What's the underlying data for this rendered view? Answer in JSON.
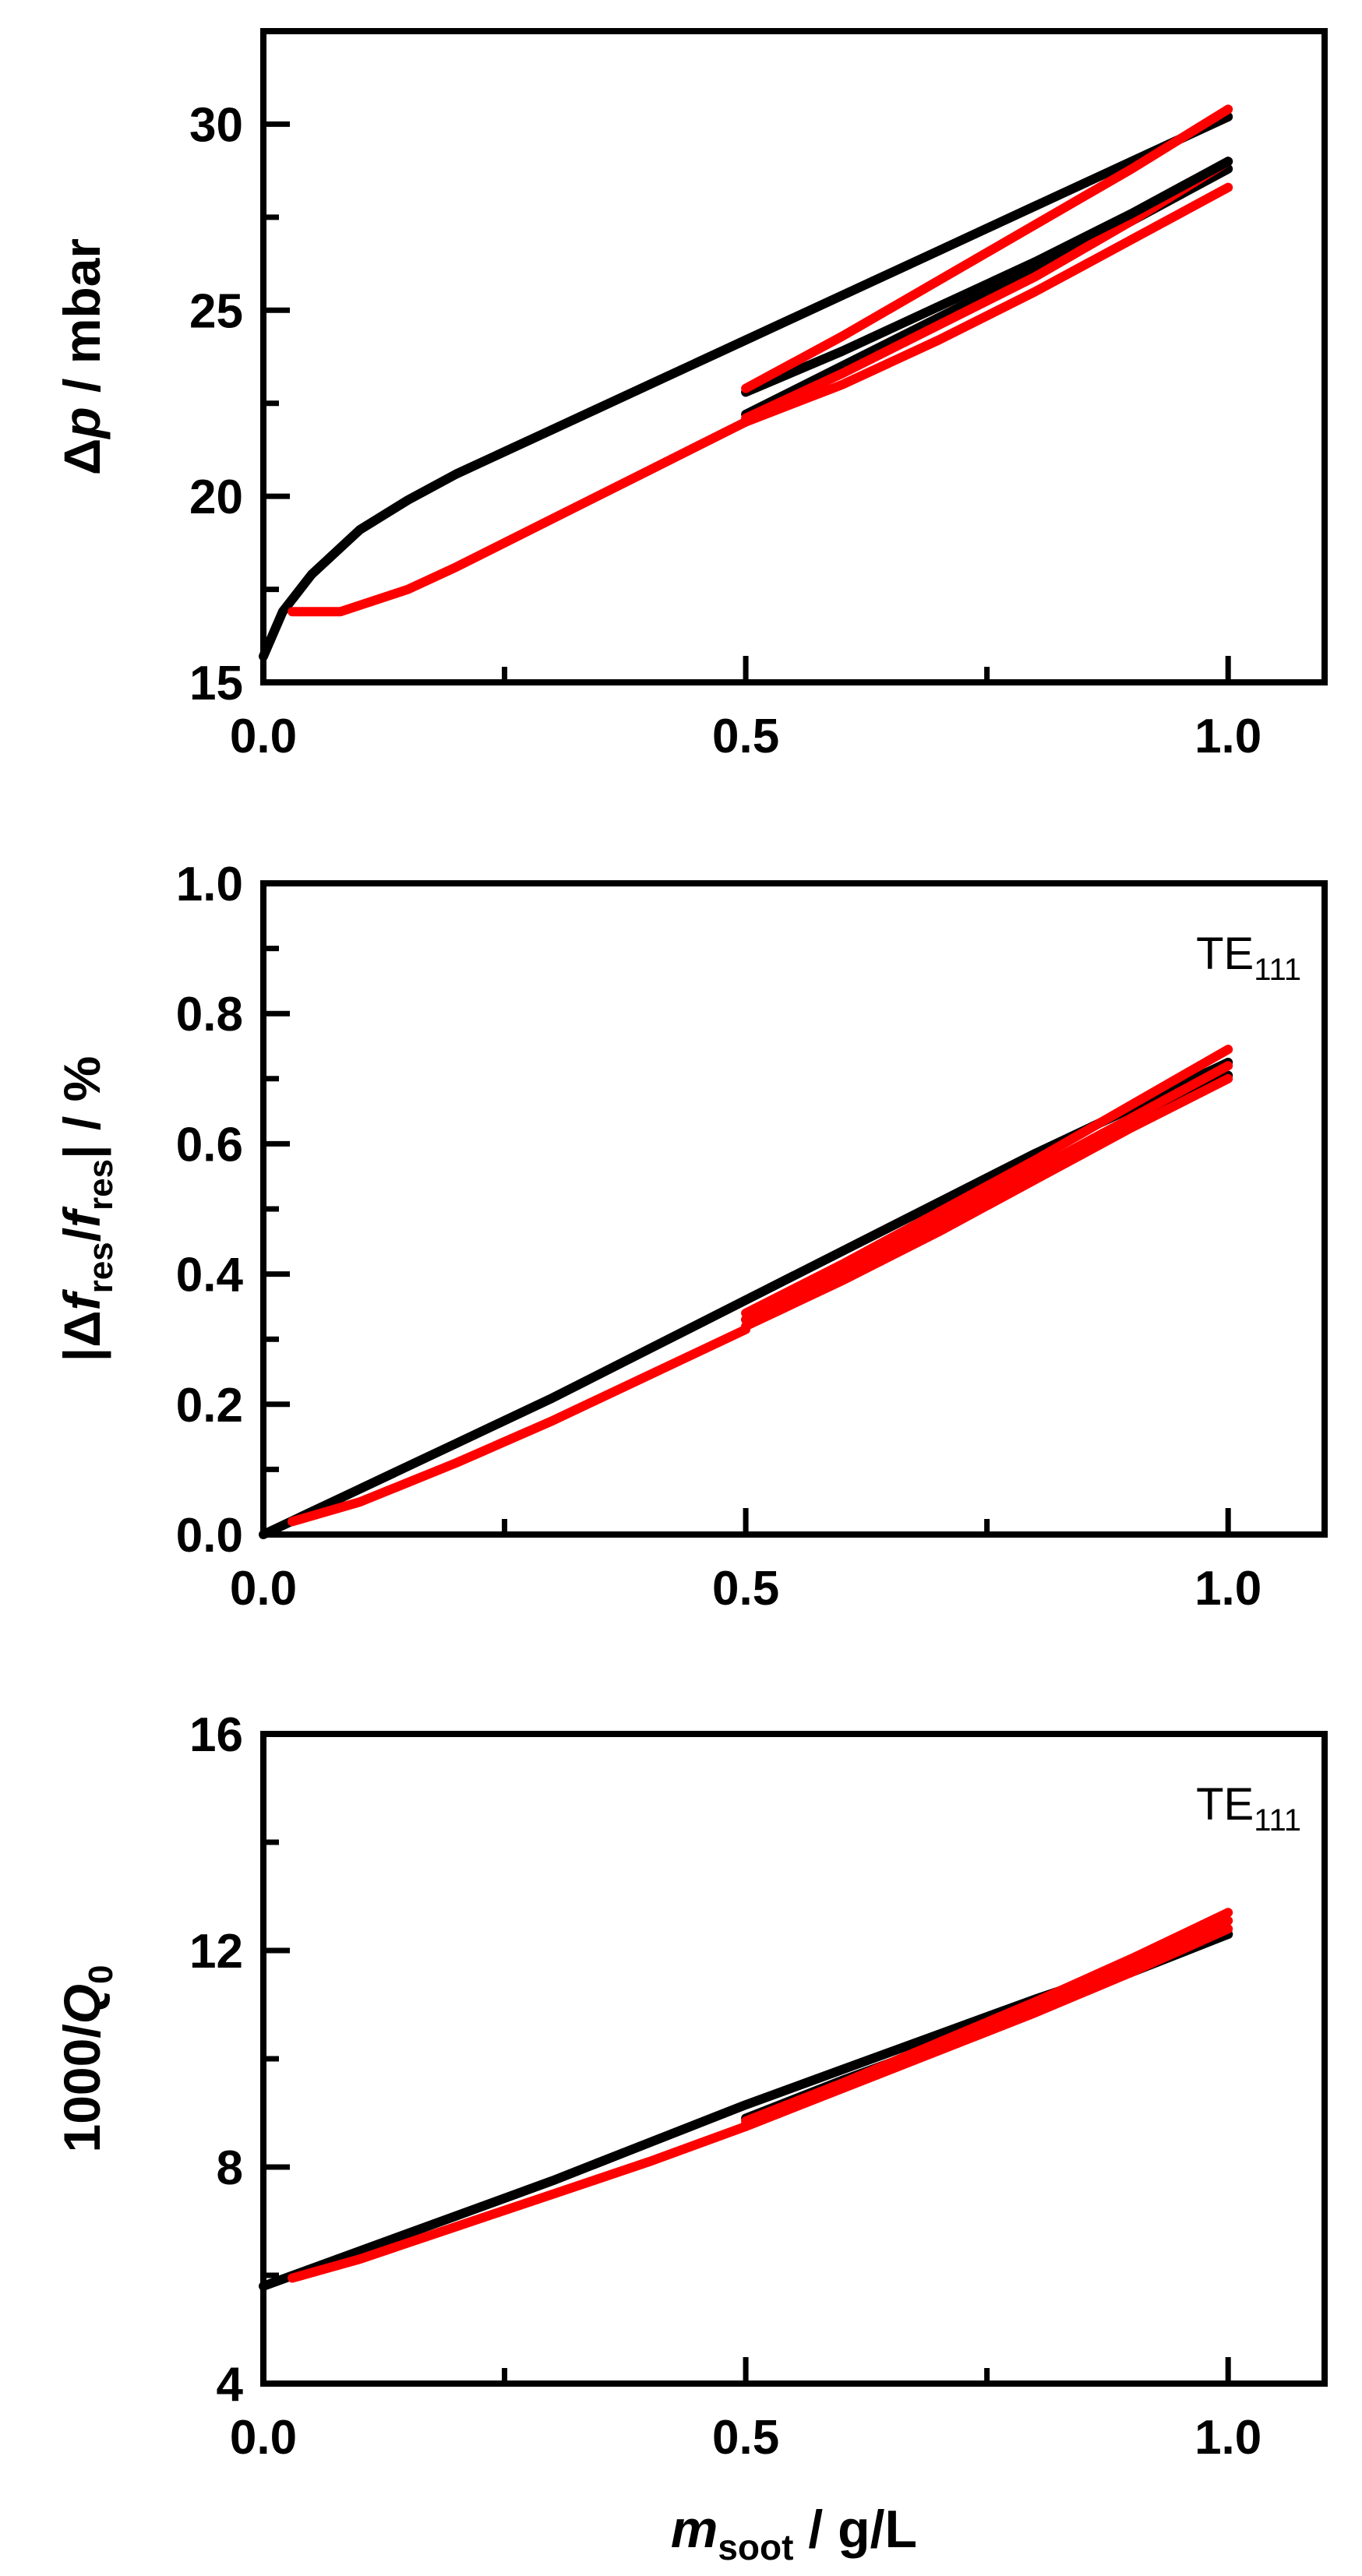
{
  "chart_data": [
    {
      "type": "line",
      "ylabel_parts": [
        "Δ",
        "p",
        " / mbar"
      ],
      "ylim": [
        15,
        32.5
      ],
      "yticks": [
        15,
        20,
        25,
        30
      ],
      "ytick_labels": [
        "15",
        "20",
        "25",
        "30"
      ],
      "xlim": [
        0,
        1.1
      ],
      "xticks": [
        0,
        0.5,
        1.0
      ],
      "xtick_labels": [
        "0.0",
        "0.5",
        "1.0"
      ],
      "annotation": "",
      "annotation_sub": "",
      "colors": {
        "black": "#000000",
        "red": "#ff0000"
      },
      "series": [
        {
          "color": "black",
          "x": [
            0,
            0.02,
            0.05,
            0.1,
            0.15,
            0.2,
            0.3,
            0.4,
            0.5,
            0.6,
            0.7,
            0.8,
            0.9,
            1.0
          ],
          "y": [
            15.7,
            16.9,
            17.9,
            19.1,
            19.9,
            20.6,
            21.8,
            23.0,
            24.2,
            25.4,
            26.6,
            27.8,
            29.0,
            30.2
          ]
        },
        {
          "color": "red",
          "x": [
            0.03,
            0.08,
            0.15,
            0.2,
            0.3,
            0.4,
            0.5
          ],
          "y": [
            16.9,
            16.9,
            17.5,
            18.1,
            19.4,
            20.7,
            22.0
          ]
        },
        {
          "color": "red",
          "x": [
            0.5,
            0.6,
            0.7,
            0.8,
            0.9,
            1.0
          ],
          "y": [
            22.0,
            23.0,
            24.2,
            25.5,
            26.9,
            28.3
          ]
        },
        {
          "color": "black",
          "x": [
            0.5,
            0.6,
            0.7,
            0.8,
            0.9,
            1.0
          ],
          "y": [
            22.2,
            23.5,
            24.8,
            26.1,
            27.4,
            28.8
          ]
        },
        {
          "color": "red",
          "x": [
            0.5,
            0.6,
            0.7,
            0.8,
            0.9,
            1.0
          ],
          "y": [
            22.1,
            23.3,
            24.6,
            25.9,
            27.4,
            29.0
          ]
        },
        {
          "color": "black",
          "x": [
            0.5,
            0.6,
            0.7,
            0.8,
            0.9,
            1.0
          ],
          "y": [
            22.8,
            23.9,
            25.1,
            26.3,
            27.6,
            29.0
          ]
        },
        {
          "color": "red",
          "x": [
            0.5,
            0.6,
            0.7,
            0.8,
            0.9,
            1.0
          ],
          "y": [
            22.9,
            24.3,
            25.8,
            27.3,
            28.8,
            30.4
          ]
        }
      ]
    },
    {
      "type": "line",
      "ylabel_parts": [
        "|Δ",
        "f",
        "res",
        "/",
        "f",
        "res",
        "| / %"
      ],
      "ylim": [
        0,
        1.0
      ],
      "yticks": [
        0,
        0.2,
        0.4,
        0.6,
        0.8,
        1.0
      ],
      "ytick_labels": [
        "0.0",
        "0.2",
        "0.4",
        "0.6",
        "0.8",
        "1.0"
      ],
      "xlim": [
        0,
        1.1
      ],
      "xticks": [
        0,
        0.5,
        1.0
      ],
      "xtick_labels": [
        "0.0",
        "0.5",
        "1.0"
      ],
      "annotation": "TE",
      "annotation_sub": "111",
      "colors": {
        "black": "#000000",
        "red": "#ff0000"
      },
      "series": [
        {
          "color": "black",
          "x": [
            0,
            0.1,
            0.2,
            0.3,
            0.4,
            0.5,
            0.6,
            0.7,
            0.8,
            0.9,
            1.0
          ],
          "y": [
            0.0,
            0.07,
            0.14,
            0.21,
            0.285,
            0.36,
            0.435,
            0.51,
            0.585,
            0.655,
            0.725
          ]
        },
        {
          "color": "red",
          "x": [
            0.03,
            0.1,
            0.2,
            0.3,
            0.4,
            0.5
          ],
          "y": [
            0.02,
            0.05,
            0.11,
            0.175,
            0.245,
            0.315
          ]
        },
        {
          "color": "black",
          "x": [
            0.5,
            0.6,
            0.7,
            0.8,
            0.9,
            1.0
          ],
          "y": [
            0.33,
            0.405,
            0.48,
            0.555,
            0.63,
            0.705
          ]
        },
        {
          "color": "red",
          "x": [
            0.5,
            0.6,
            0.7,
            0.8,
            0.9,
            1.0
          ],
          "y": [
            0.32,
            0.39,
            0.465,
            0.545,
            0.625,
            0.7
          ]
        },
        {
          "color": "red",
          "x": [
            0.5,
            0.6,
            0.7,
            0.8,
            0.9,
            1.0
          ],
          "y": [
            0.33,
            0.405,
            0.48,
            0.56,
            0.64,
            0.72
          ]
        },
        {
          "color": "red",
          "x": [
            0.5,
            0.6,
            0.7,
            0.8,
            0.9,
            1.0
          ],
          "y": [
            0.34,
            0.415,
            0.495,
            0.575,
            0.66,
            0.745
          ]
        }
      ]
    },
    {
      "type": "line",
      "ylabel_parts": [
        "1000/",
        "Q",
        "0"
      ],
      "ylim": [
        4,
        16
      ],
      "yticks": [
        4,
        8,
        12,
        16
      ],
      "ytick_labels": [
        "4",
        "8",
        "12",
        "16"
      ],
      "xlim": [
        0,
        1.1
      ],
      "xticks": [
        0,
        0.5,
        1.0
      ],
      "xtick_labels": [
        "0.0",
        "0.5",
        "1.0"
      ],
      "xlabel_parts": [
        "m",
        "soot",
        " / g/L"
      ],
      "annotation": "TE",
      "annotation_sub": "111",
      "colors": {
        "black": "#000000",
        "red": "#ff0000"
      },
      "series": [
        {
          "color": "black",
          "x": [
            0,
            0.1,
            0.2,
            0.3,
            0.4,
            0.5,
            0.6,
            0.7,
            0.8,
            0.9,
            1.0
          ],
          "y": [
            5.8,
            6.45,
            7.1,
            7.75,
            8.45,
            9.15,
            9.8,
            10.45,
            11.1,
            11.7,
            12.3
          ]
        },
        {
          "color": "red",
          "x": [
            0.03,
            0.1,
            0.2,
            0.3,
            0.4,
            0.5
          ],
          "y": [
            5.95,
            6.3,
            6.9,
            7.5,
            8.1,
            8.75
          ]
        },
        {
          "color": "black",
          "x": [
            0.5,
            0.6,
            0.7,
            0.8,
            0.9,
            1.0
          ],
          "y": [
            8.9,
            9.6,
            10.25,
            10.9,
            11.6,
            12.3
          ]
        },
        {
          "color": "red",
          "x": [
            0.5,
            0.6,
            0.7,
            0.8,
            0.9,
            1.0
          ],
          "y": [
            8.75,
            9.45,
            10.15,
            10.85,
            11.6,
            12.4
          ]
        },
        {
          "color": "red",
          "x": [
            0.5,
            0.6,
            0.7,
            0.8,
            0.9,
            1.0
          ],
          "y": [
            8.8,
            9.5,
            10.2,
            10.95,
            11.75,
            12.55
          ]
        },
        {
          "color": "red",
          "x": [
            0.5,
            0.6,
            0.7,
            0.8,
            0.9,
            1.0
          ],
          "y": [
            8.85,
            9.55,
            10.3,
            11.05,
            11.85,
            12.7
          ]
        }
      ]
    }
  ]
}
